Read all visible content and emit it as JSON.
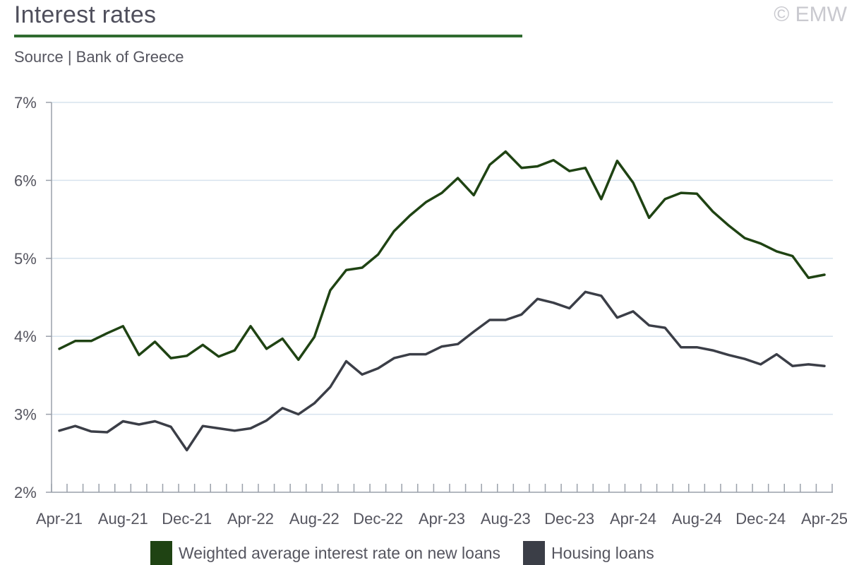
{
  "header": {
    "title": "Interest rates",
    "subtitle": "Source | Bank of Greece",
    "copyright": "© EMW"
  },
  "chart_data": {
    "type": "line",
    "title": "Interest rates",
    "xlabel": "",
    "ylabel": "",
    "ylim": [
      2,
      7
    ],
    "y_ticks": [
      "2%",
      "3%",
      "4%",
      "5%",
      "6%",
      "7%"
    ],
    "grid": true,
    "legend_position": "bottom",
    "x_tick_labels": [
      "Apr-21",
      "Aug-21",
      "Dec-21",
      "Apr-22",
      "Aug-22",
      "Dec-22",
      "Apr-23",
      "Aug-23",
      "Dec-23",
      "Apr-24",
      "Aug-24",
      "Dec-24",
      "Apr-25"
    ],
    "x": [
      "Apr-21",
      "May-21",
      "Jun-21",
      "Jul-21",
      "Aug-21",
      "Sep-21",
      "Oct-21",
      "Nov-21",
      "Dec-21",
      "Jan-22",
      "Feb-22",
      "Mar-22",
      "Apr-22",
      "May-22",
      "Jun-22",
      "Jul-22",
      "Aug-22",
      "Sep-22",
      "Oct-22",
      "Nov-22",
      "Dec-22",
      "Jan-23",
      "Feb-23",
      "Mar-23",
      "Apr-23",
      "May-23",
      "Jun-23",
      "Jul-23",
      "Aug-23",
      "Sep-23",
      "Oct-23",
      "Nov-23",
      "Dec-23",
      "Jan-24",
      "Feb-24",
      "Mar-24",
      "Apr-24",
      "May-24",
      "Jun-24",
      "Jul-24",
      "Aug-24",
      "Sep-24",
      "Oct-24",
      "Nov-24",
      "Dec-24",
      "Jan-25",
      "Feb-25",
      "Mar-25",
      "Apr-25"
    ],
    "series": [
      {
        "name": "Weighted average interest rate on new loans",
        "color": "#1f4313",
        "values": [
          3.84,
          3.94,
          3.94,
          4.04,
          4.13,
          3.76,
          3.93,
          3.72,
          3.75,
          3.89,
          3.74,
          3.82,
          4.13,
          3.84,
          3.97,
          3.7,
          3.99,
          4.59,
          4.85,
          4.88,
          5.05,
          5.35,
          5.55,
          5.72,
          5.84,
          6.03,
          5.81,
          6.2,
          6.37,
          6.16,
          6.18,
          6.26,
          6.12,
          6.16,
          5.76,
          6.25,
          5.97,
          5.52,
          5.76,
          5.84,
          5.83,
          5.6,
          5.42,
          5.26,
          5.19,
          5.09,
          5.03,
          4.75,
          4.79
        ]
      },
      {
        "name": "Housing loans",
        "color": "#3b3e47",
        "values": [
          2.79,
          2.85,
          2.78,
          2.77,
          2.91,
          2.87,
          2.91,
          2.84,
          2.54,
          2.85,
          2.82,
          2.79,
          2.82,
          2.92,
          3.08,
          3.0,
          3.14,
          3.35,
          3.68,
          3.51,
          3.59,
          3.72,
          3.77,
          3.77,
          3.87,
          3.9,
          4.06,
          4.21,
          4.21,
          4.28,
          4.48,
          4.43,
          4.36,
          4.57,
          4.52,
          4.24,
          4.32,
          4.14,
          4.11,
          3.86,
          3.86,
          3.82,
          3.76,
          3.71,
          3.64,
          3.77,
          3.62,
          3.64,
          3.62
        ]
      }
    ]
  }
}
